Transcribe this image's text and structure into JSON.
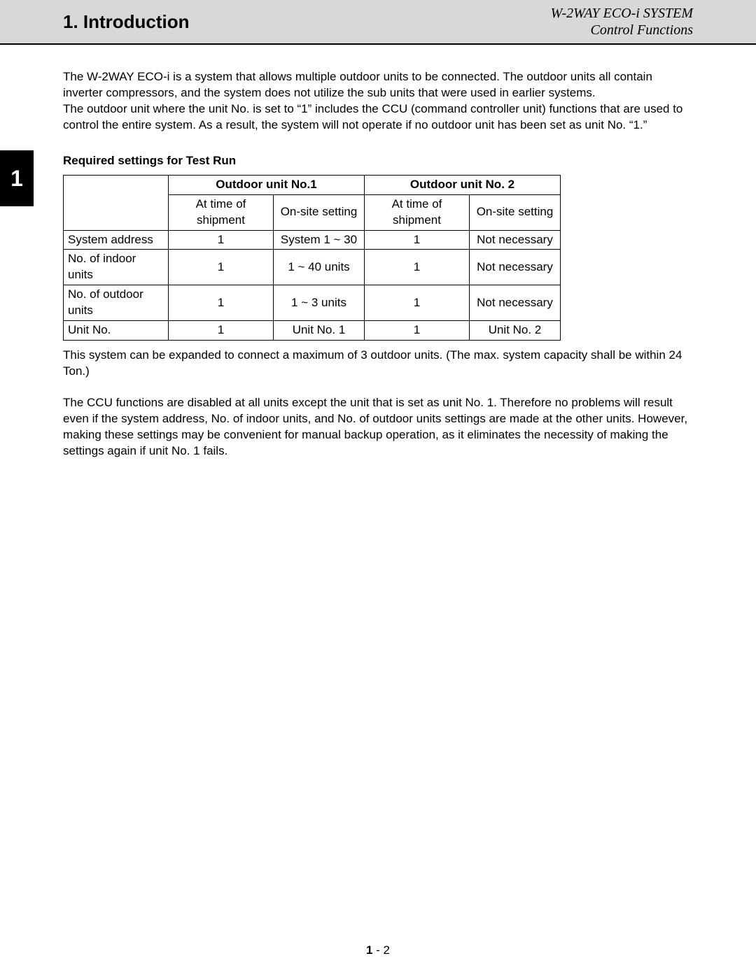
{
  "header": {
    "section_title": "1. Introduction",
    "doc_title_line1": "W-2WAY ECO-i SYSTEM",
    "doc_title_line2": "Control Functions"
  },
  "side_tab": "1",
  "paragraphs": {
    "p1": "The W-2WAY ECO-i is a system that allows multiple outdoor units to be connected. The outdoor units all contain inverter compressors, and the system does not utilize the sub units that were used in earlier systems.",
    "p2": "The outdoor unit where the unit No. is set to “1” includes the CCU (command controller unit) functions that are used to control the entire system. As a result, the system will not operate if no outdoor unit has been set as unit No. “1.”",
    "p3": "This system can be expanded to connect a maximum of 3 outdoor units. (The max. system capacity shall be within 24 Ton.)",
    "p4": "The CCU functions are disabled at all units except the unit that is set as unit No. 1. Therefore no problems will result even if the system address, No. of indoor units, and No. of outdoor units settings are made at the other units. However, making these settings may be convenient for manual backup operation, as it eliminates the necessity of making the settings again if unit No. 1 fails."
  },
  "table": {
    "heading": "Required settings for Test Run",
    "group_headers": [
      "Outdoor unit No.1",
      "Outdoor unit No. 2"
    ],
    "sub_headers": [
      "At time of shipment",
      "On-site setting",
      "At time of shipment",
      "On-site setting"
    ],
    "rows": [
      {
        "label": "System address",
        "cells": [
          "1",
          "System 1 ~ 30",
          "1",
          "Not necessary"
        ]
      },
      {
        "label": "No. of indoor units",
        "cells": [
          "1",
          "1 ~ 40 units",
          "1",
          "Not necessary"
        ]
      },
      {
        "label": "No. of outdoor units",
        "cells": [
          "1",
          "1 ~ 3 units",
          "1",
          "Not necessary"
        ]
      },
      {
        "label": "Unit No.",
        "cells": [
          "1",
          "Unit No. 1",
          "1",
          "Unit No. 2"
        ]
      }
    ]
  },
  "footer": {
    "chapter": "1",
    "sep": " - ",
    "page": "2"
  }
}
